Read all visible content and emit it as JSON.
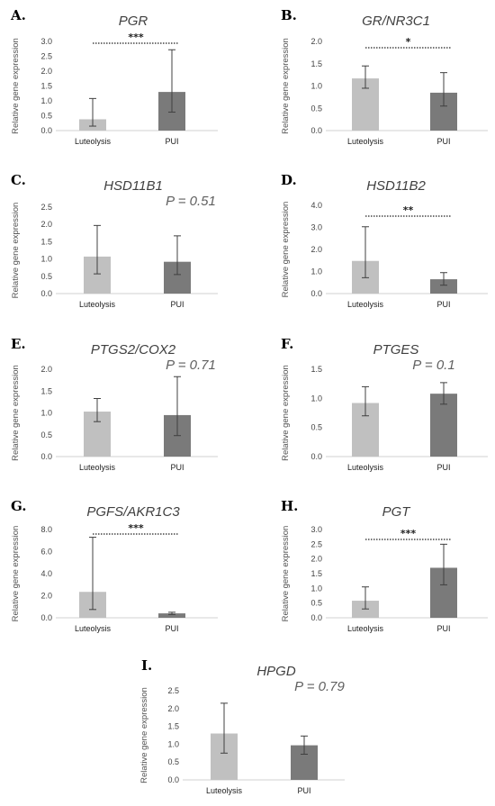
{
  "chart_data": [
    {
      "type": "bar",
      "panel": "A.",
      "title": "PGR",
      "ylabel": "Relative gene expression",
      "categories": [
        "Luteolysis",
        "PUI"
      ],
      "values": [
        0.38,
        1.3
      ],
      "err_low": [
        0.15,
        0.62
      ],
      "err_high": [
        1.08,
        2.72
      ],
      "ylim": [
        0,
        3.0
      ],
      "yticks": [
        "0.0",
        "0.5",
        "1.0",
        "1.5",
        "2.0",
        "2.5",
        "3.0"
      ],
      "significance": "***",
      "pvalue": "",
      "colors": [
        "#c0c0c0",
        "#7a7a7a"
      ]
    },
    {
      "type": "bar",
      "panel": "B.",
      "title": "GR/NR3C1",
      "ylabel": "Relative gene expression",
      "categories": [
        "Luteolysis",
        "PUI"
      ],
      "values": [
        1.17,
        0.85
      ],
      "err_low": [
        0.95,
        0.55
      ],
      "err_high": [
        1.45,
        1.3
      ],
      "ylim": [
        0,
        2.0
      ],
      "yticks": [
        "0.0",
        "0.5",
        "1.0",
        "1.5",
        "2.0"
      ],
      "significance": "*",
      "pvalue": "",
      "colors": [
        "#c0c0c0",
        "#7a7a7a"
      ]
    },
    {
      "type": "bar",
      "panel": "C.",
      "title": "HSD11B1",
      "ylabel": "Relative gene expression",
      "categories": [
        "Luteolysis",
        "PUI"
      ],
      "values": [
        1.07,
        0.92
      ],
      "err_low": [
        0.57,
        0.55
      ],
      "err_high": [
        1.97,
        1.67
      ],
      "ylim": [
        0,
        2.5
      ],
      "yticks": [
        "0.0",
        "0.5",
        "1.0",
        "1.5",
        "2.0",
        "2.5"
      ],
      "significance": "",
      "pvalue": "P = 0.51",
      "colors": [
        "#c0c0c0",
        "#7a7a7a"
      ]
    },
    {
      "type": "bar",
      "panel": "D.",
      "title": "HSD11B2",
      "ylabel": "Relative gene expression",
      "categories": [
        "Luteolysis",
        "PUI"
      ],
      "values": [
        1.48,
        0.65
      ],
      "err_low": [
        0.72,
        0.38
      ],
      "err_high": [
        3.03,
        0.95
      ],
      "ylim": [
        0,
        4.0
      ],
      "yticks": [
        "0.0",
        "1.0",
        "2.0",
        "3.0",
        "4.0"
      ],
      "significance": "**",
      "pvalue": "",
      "colors": [
        "#c0c0c0",
        "#7a7a7a"
      ]
    },
    {
      "type": "bar",
      "panel": "E.",
      "title": "PTGS2/COX2",
      "ylabel": "Relative gene expression",
      "categories": [
        "Luteolysis",
        "PUI"
      ],
      "values": [
        1.03,
        0.95
      ],
      "err_low": [
        0.8,
        0.48
      ],
      "err_high": [
        1.33,
        1.83
      ],
      "ylim": [
        0,
        2.0
      ],
      "yticks": [
        "0.0",
        "0.5",
        "1.0",
        "1.5",
        "2.0"
      ],
      "significance": "",
      "pvalue": "P = 0.71",
      "colors": [
        "#c0c0c0",
        "#7a7a7a"
      ]
    },
    {
      "type": "bar",
      "panel": "F.",
      "title": "PTGES",
      "ylabel": "Relative gene expression",
      "categories": [
        "Luteolysis",
        "PUI"
      ],
      "values": [
        0.92,
        1.08
      ],
      "err_low": [
        0.7,
        0.9
      ],
      "err_high": [
        1.2,
        1.27
      ],
      "ylim": [
        0,
        1.5
      ],
      "yticks": [
        "0.0",
        "0.5",
        "1.0",
        "1.5"
      ],
      "significance": "",
      "pvalue": "P = 0.1",
      "colors": [
        "#c0c0c0",
        "#7a7a7a"
      ]
    },
    {
      "type": "bar",
      "panel": "G.",
      "title": "PGFS/AKR1C3",
      "ylabel": "Relative gene expression",
      "categories": [
        "Luteolysis",
        "PUI"
      ],
      "values": [
        2.35,
        0.4
      ],
      "err_low": [
        0.75,
        0.3
      ],
      "err_high": [
        7.3,
        0.5
      ],
      "ylim": [
        0,
        8.0
      ],
      "yticks": [
        "0.0",
        "2.0",
        "4.0",
        "6.0",
        "8.0"
      ],
      "significance": "***",
      "pvalue": "",
      "colors": [
        "#c0c0c0",
        "#7a7a7a"
      ]
    },
    {
      "type": "bar",
      "panel": "H.",
      "title": "PGT",
      "ylabel": "Relative gene expression",
      "categories": [
        "Luteolysis",
        "PUI"
      ],
      "values": [
        0.58,
        1.7
      ],
      "err_low": [
        0.3,
        1.12
      ],
      "err_high": [
        1.05,
        2.5
      ],
      "ylim": [
        0,
        3.0
      ],
      "yticks": [
        "0.0",
        "0.5",
        "1.0",
        "1.5",
        "2.0",
        "2.5",
        "3.0"
      ],
      "significance": "***",
      "pvalue": "",
      "colors": [
        "#c0c0c0",
        "#7a7a7a"
      ]
    },
    {
      "type": "bar",
      "panel": "I.",
      "title": "HPGD",
      "ylabel": "Relative gene expression",
      "categories": [
        "Luteolysis",
        "PUI"
      ],
      "values": [
        1.3,
        0.97
      ],
      "err_low": [
        0.75,
        0.72
      ],
      "err_high": [
        2.15,
        1.23
      ],
      "ylim": [
        0,
        2.5
      ],
      "yticks": [
        "0.0",
        "0.5",
        "1.0",
        "1.5",
        "2.0",
        "2.5"
      ],
      "significance": "",
      "pvalue": "P = 0.79",
      "colors": [
        "#c0c0c0",
        "#7a7a7a"
      ]
    }
  ]
}
